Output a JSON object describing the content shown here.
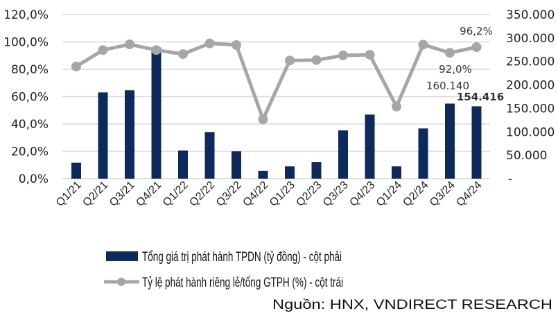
{
  "chart_data": {
    "type": "bar+line",
    "categories": [
      "Q1/21",
      "Q2/21",
      "Q3/21",
      "Q4/21",
      "Q1/22",
      "Q2/22",
      "Q3/22",
      "Q4/22",
      "Q1/23",
      "Q2/23",
      "Q3/23",
      "Q4/23",
      "Q1/24",
      "Q2/24",
      "Q3/24",
      "Q4/24"
    ],
    "series": [
      {
        "name": "Tổng giá trị phát hành TPDN (tỷ đồng) - cột phải",
        "type": "bar",
        "axis": "right",
        "color": "#0d2a5c",
        "values": [
          34200,
          184000,
          188600,
          279700,
          59900,
          99100,
          58600,
          16500,
          26200,
          35400,
          102900,
          136700,
          26200,
          107200,
          160140,
          154416
        ]
      },
      {
        "name": "Tỷ lệ phát hành riêng lẻ/tổng GTPH (%) - cột trái",
        "type": "line",
        "axis": "left",
        "color": "#a6a6a6",
        "values": [
          82.0,
          94.0,
          98.2,
          94.0,
          91.1,
          98.9,
          97.7,
          43.4,
          86.4,
          86.7,
          90.1,
          90.6,
          52.7,
          98.0,
          92.0,
          96.2
        ]
      }
    ],
    "left_axis": {
      "ylim": [
        0,
        120
      ],
      "ticks": [
        "0,0%",
        "20,0%",
        "40,0%",
        "60,0%",
        "80,0%",
        "100,0%",
        "120,0%"
      ]
    },
    "right_axis": {
      "ylim": [
        0,
        350000
      ],
      "ticks": [
        "-",
        "50.000",
        "100.000",
        "150.000",
        "200.000",
        "250.000",
        "300.000",
        "350.000"
      ]
    },
    "data_labels": {
      "line_q3_24": "92,0%",
      "line_q4_24": "96,2%",
      "bar_q3_24": "160.140",
      "bar_q4_24": "154.416"
    },
    "grid": true,
    "legend_placement": "bottom"
  },
  "source": "Nguồn: HNX, VNDIRECT RESEARCH"
}
